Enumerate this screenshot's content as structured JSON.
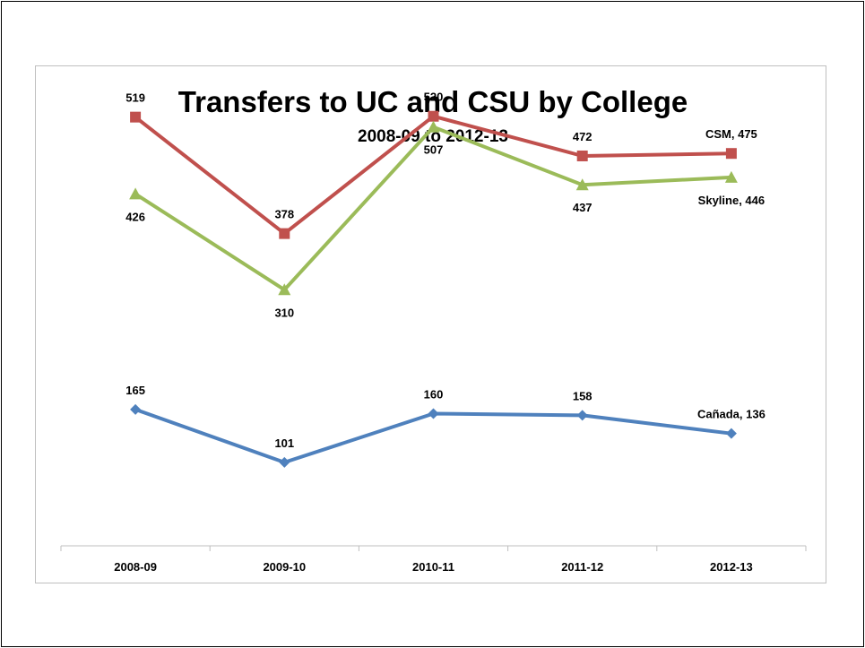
{
  "chart_data": {
    "type": "line",
    "title": "Transfers to UC and CSU by College",
    "subtitle": "2008-09 to 2012-13",
    "xlabel": "",
    "ylabel": "",
    "categories": [
      "2008-09",
      "2009-10",
      "2010-11",
      "2011-12",
      "2012-13"
    ],
    "ylim": [
      0,
      600
    ],
    "grid": false,
    "legend": "none",
    "series": [
      {
        "name": "CSM",
        "color": "#c0504d",
        "marker": "square",
        "values": [
          519,
          378,
          520,
          472,
          475
        ],
        "labels": [
          "519",
          "378",
          "520",
          "472",
          "CSM, 475"
        ],
        "label_side": [
          "above",
          "above",
          "above",
          "above",
          "above"
        ]
      },
      {
        "name": "Skyline",
        "color": "#9bbb59",
        "marker": "triangle",
        "values": [
          426,
          310,
          507,
          437,
          446
        ],
        "labels": [
          "426",
          "310",
          "507",
          "437",
          "Skyline, 446"
        ],
        "label_side": [
          "below",
          "below",
          "below",
          "below",
          "below"
        ]
      },
      {
        "name": "Cañada",
        "color": "#4f81bd",
        "marker": "diamond",
        "values": [
          165,
          101,
          160,
          158,
          136
        ],
        "labels": [
          "165",
          "101",
          "160",
          "158",
          "Cañada, 136"
        ],
        "label_side": [
          "above",
          "above",
          "above",
          "above",
          "above"
        ]
      }
    ]
  }
}
